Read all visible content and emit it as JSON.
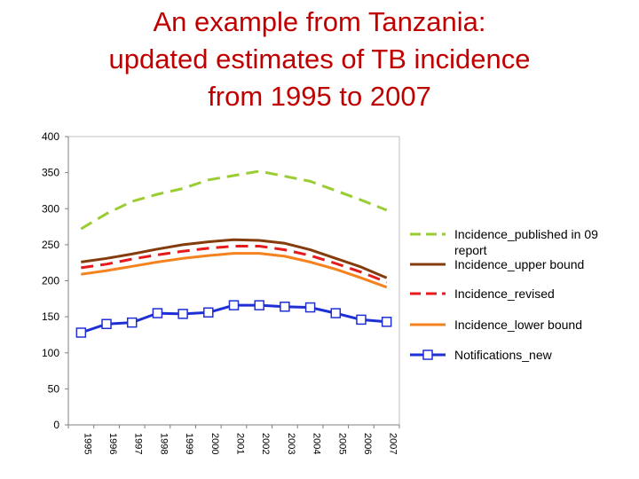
{
  "slide": {
    "title_lines": [
      "An example from Tanzania:",
      "updated estimates of TB incidence",
      "from 1995 to 2007"
    ]
  },
  "chart_data": {
    "type": "line",
    "title": "An example from Tanzania: updated estimates of TB incidence from 1995 to 2007",
    "xlabel": "",
    "ylabel": "",
    "categories": [
      "1995",
      "1996",
      "1997",
      "1998",
      "1999",
      "2000",
      "2001",
      "2002",
      "2003",
      "2004",
      "2005",
      "2006",
      "2007"
    ],
    "ylim": [
      0,
      400
    ],
    "yticks": [
      0,
      50,
      100,
      150,
      200,
      250,
      300,
      350,
      400
    ],
    "grid": false,
    "legend_position": "right",
    "series": [
      {
        "name": "Incidence_published in 09 report",
        "color": "#9acd32",
        "style": "dashed",
        "values": [
          272,
          293,
          310,
          320,
          328,
          340,
          346,
          352,
          345,
          338,
          325,
          312,
          298
        ]
      },
      {
        "name": "Incidence_upper bound",
        "color": "#843c0c",
        "style": "solid",
        "values": [
          226,
          231,
          237,
          244,
          250,
          254,
          257,
          256,
          252,
          243,
          231,
          219,
          204
        ]
      },
      {
        "name": "Incidence_revised",
        "color": "#e41a1c",
        "style": "dashed",
        "values": [
          218,
          223,
          230,
          236,
          241,
          245,
          248,
          248,
          243,
          235,
          224,
          212,
          198
        ]
      },
      {
        "name": "Incidence_lower bound",
        "color": "#f4821f",
        "style": "solid",
        "values": [
          209,
          214,
          220,
          226,
          231,
          235,
          238,
          238,
          234,
          226,
          216,
          204,
          191
        ]
      },
      {
        "name": "Notifications_new",
        "color": "#1f2fd6",
        "style": "solid-square-markers",
        "values": [
          128,
          140,
          142,
          155,
          154,
          156,
          166,
          166,
          164,
          163,
          155,
          146,
          143
        ]
      }
    ]
  }
}
